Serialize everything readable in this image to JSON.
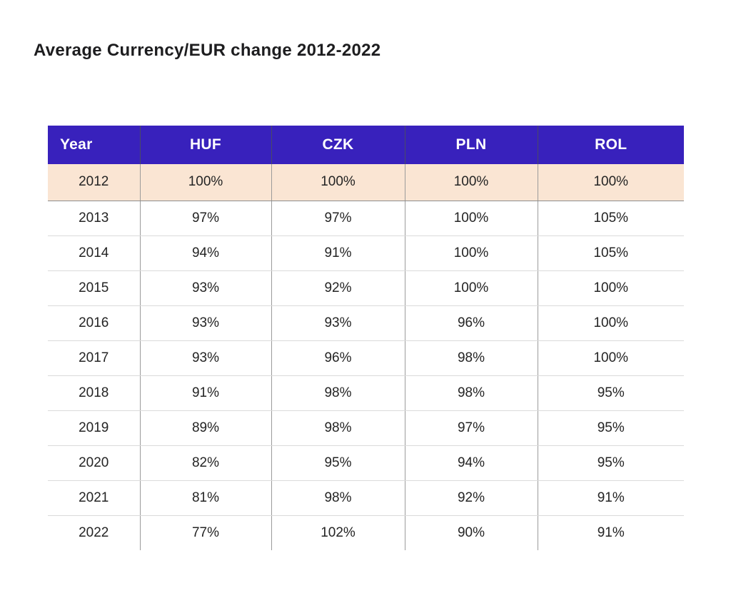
{
  "title": "Average Currency/EUR change 2012-2022",
  "colors": {
    "header_bg": "#3821BC",
    "header_text": "#FFFFFF",
    "highlight_bg": "#FAE5D3",
    "title_color": "#1D1D1F",
    "text_color": "#242424",
    "divider": "#9B9B9B",
    "row_line": "#DADADA",
    "highlight_line": "#8D8D8D",
    "page_bg": "#FFFFFF"
  },
  "table": {
    "columns": [
      "Year",
      "HUF",
      "CZK",
      "PLN",
      "ROL"
    ],
    "rows": [
      {
        "year": "2012",
        "values": [
          "100%",
          "100%",
          "100%",
          "100%"
        ],
        "highlight": true
      },
      {
        "year": "2013",
        "values": [
          "97%",
          "97%",
          "100%",
          "105%"
        ],
        "highlight": false
      },
      {
        "year": "2014",
        "values": [
          "94%",
          "91%",
          "100%",
          "105%"
        ],
        "highlight": false
      },
      {
        "year": "2015",
        "values": [
          "93%",
          "92%",
          "100%",
          "100%"
        ],
        "highlight": false
      },
      {
        "year": "2016",
        "values": [
          "93%",
          "93%",
          "96%",
          "100%"
        ],
        "highlight": false
      },
      {
        "year": "2017",
        "values": [
          "93%",
          "96%",
          "98%",
          "100%"
        ],
        "highlight": false
      },
      {
        "year": "2018",
        "values": [
          "91%",
          "98%",
          "98%",
          "95%"
        ],
        "highlight": false
      },
      {
        "year": "2019",
        "values": [
          "89%",
          "98%",
          "97%",
          "95%"
        ],
        "highlight": false
      },
      {
        "year": "2020",
        "values": [
          "82%",
          "95%",
          "94%",
          "95%"
        ],
        "highlight": false
      },
      {
        "year": "2021",
        "values": [
          "81%",
          "98%",
          "92%",
          "91%"
        ],
        "highlight": false
      },
      {
        "year": "2022",
        "values": [
          "77%",
          "102%",
          "90%",
          "91%"
        ],
        "highlight": false
      }
    ]
  },
  "chart_data": {
    "type": "table",
    "title": "Average Currency/EUR change 2012-2022",
    "categories": [
      "2012",
      "2013",
      "2014",
      "2015",
      "2016",
      "2017",
      "2018",
      "2019",
      "2020",
      "2021",
      "2022"
    ],
    "unit": "%",
    "series": [
      {
        "name": "HUF",
        "values": [
          100,
          97,
          94,
          93,
          93,
          93,
          91,
          89,
          82,
          81,
          77
        ]
      },
      {
        "name": "CZK",
        "values": [
          100,
          97,
          91,
          92,
          93,
          96,
          98,
          98,
          95,
          98,
          102
        ]
      },
      {
        "name": "PLN",
        "values": [
          100,
          100,
          100,
          100,
          96,
          98,
          98,
          97,
          94,
          92,
          90
        ]
      },
      {
        "name": "ROL",
        "values": [
          100,
          105,
          105,
          100,
          100,
          100,
          95,
          95,
          95,
          91,
          91
        ]
      }
    ]
  }
}
